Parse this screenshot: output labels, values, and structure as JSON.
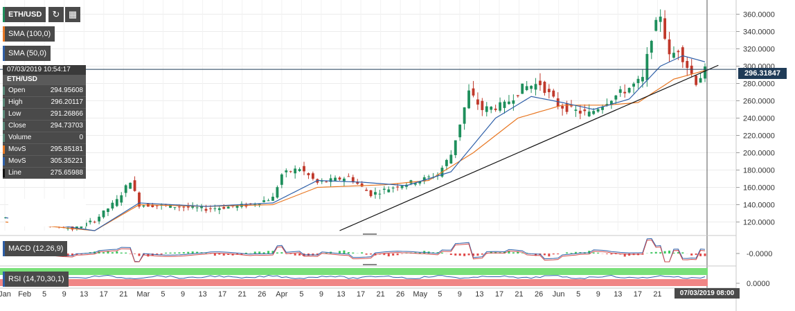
{
  "toolbar": {
    "symbol": "ETH/USD",
    "refresh_icon": "refresh-icon",
    "calendar_icon": "calendar-icon"
  },
  "indicators": {
    "sma100": "SMA (100,0)",
    "sma50": "SMA (50,0)",
    "macd": "MACD (12,26,9)",
    "rsi": "RSI (14,70,30,1)"
  },
  "ohlc": {
    "timestamp": "07/03/2019 10:54:17",
    "title": "ETH/USD",
    "rows": [
      {
        "key": "Open",
        "value": "294.95608",
        "color": "#5a8a7a"
      },
      {
        "key": "High",
        "value": "296.20117",
        "color": "#5a8a7a"
      },
      {
        "key": "Low",
        "value": "291.26866",
        "color": "#5a8a7a"
      },
      {
        "key": "Close",
        "value": "294.73703",
        "color": "#5a8a7a"
      },
      {
        "key": "Volume",
        "value": "0",
        "color": "#5a8a7a"
      },
      {
        "key": "MovS",
        "value": "295.85181",
        "color": "#e87722"
      },
      {
        "key": "MovS",
        "value": "305.35221",
        "color": "#2e5fa8"
      },
      {
        "key": "Line",
        "value": "275.65988",
        "color": "#111111"
      }
    ]
  },
  "current_price": "296.31847",
  "crosshair_date": "07/03/2019 08:00",
  "macd_value": "-0.0000",
  "rsi_value": "0.0000",
  "colors": {
    "up": "#1e8f5c",
    "down": "#c0392b",
    "sma100": "#e87722",
    "sma50": "#2e5fa8",
    "trendline": "#111111"
  },
  "chart_data": {
    "type": "candlestick",
    "symbol": "ETH/USD",
    "ylim": [
      110,
      370
    ],
    "yticks": [
      "120.0000",
      "140.0000",
      "160.0000",
      "180.0000",
      "200.0000",
      "220.0000",
      "240.0000",
      "260.0000",
      "280.0000",
      "300.0000",
      "320.0000",
      "340.0000",
      "360.0000"
    ],
    "xticks": [
      "Jan",
      "Feb",
      "5",
      "9",
      "13",
      "17",
      "21",
      "Mar",
      "5",
      "9",
      "13",
      "17",
      "21",
      "26",
      "Apr",
      "5",
      "9",
      "13",
      "17",
      "21",
      "26",
      "May",
      "5",
      "9",
      "13",
      "17",
      "21",
      "26",
      "Jun",
      "5",
      "9",
      "13",
      "17",
      "21",
      "2"
    ],
    "close_anchors": [
      [
        0,
        125
      ],
      [
        10,
        118
      ],
      [
        15,
        112
      ],
      [
        20,
        122
      ],
      [
        25,
        145
      ],
      [
        28,
        168
      ],
      [
        30,
        140
      ],
      [
        38,
        138
      ],
      [
        45,
        135
      ],
      [
        55,
        140
      ],
      [
        60,
        148
      ],
      [
        62,
        175
      ],
      [
        66,
        182
      ],
      [
        70,
        165
      ],
      [
        77,
        172
      ],
      [
        82,
        152
      ],
      [
        88,
        162
      ],
      [
        93,
        168
      ],
      [
        97,
        175
      ],
      [
        100,
        198
      ],
      [
        104,
        270
      ],
      [
        107,
        250
      ],
      [
        112,
        255
      ],
      [
        116,
        275
      ],
      [
        120,
        280
      ],
      [
        124,
        255
      ],
      [
        128,
        248
      ],
      [
        131,
        245
      ],
      [
        135,
        260
      ],
      [
        140,
        275
      ],
      [
        143,
        285
      ],
      [
        145,
        335
      ],
      [
        147,
        360
      ],
      [
        149,
        310
      ],
      [
        151,
        320
      ],
      [
        153,
        300
      ],
      [
        155,
        282
      ],
      [
        157,
        295
      ]
    ],
    "sma50_anchors": [
      [
        0,
        125
      ],
      [
        20,
        110
      ],
      [
        30,
        142
      ],
      [
        45,
        138
      ],
      [
        60,
        142
      ],
      [
        70,
        168
      ],
      [
        80,
        166
      ],
      [
        90,
        162
      ],
      [
        100,
        178
      ],
      [
        110,
        240
      ],
      [
        118,
        265
      ],
      [
        125,
        258
      ],
      [
        132,
        250
      ],
      [
        140,
        262
      ],
      [
        147,
        300
      ],
      [
        152,
        312
      ],
      [
        157,
        305
      ]
    ],
    "sma100_anchors": [
      [
        0,
        120
      ],
      [
        20,
        110
      ],
      [
        30,
        140
      ],
      [
        45,
        138
      ],
      [
        60,
        140
      ],
      [
        70,
        160
      ],
      [
        85,
        163
      ],
      [
        95,
        168
      ],
      [
        105,
        200
      ],
      [
        115,
        240
      ],
      [
        125,
        255
      ],
      [
        135,
        255
      ],
      [
        142,
        258
      ],
      [
        150,
        285
      ],
      [
        157,
        295
      ]
    ],
    "trendline": {
      "start": [
        75,
        110
      ],
      "end": [
        160,
        301
      ]
    },
    "current_price": 296.31847
  }
}
